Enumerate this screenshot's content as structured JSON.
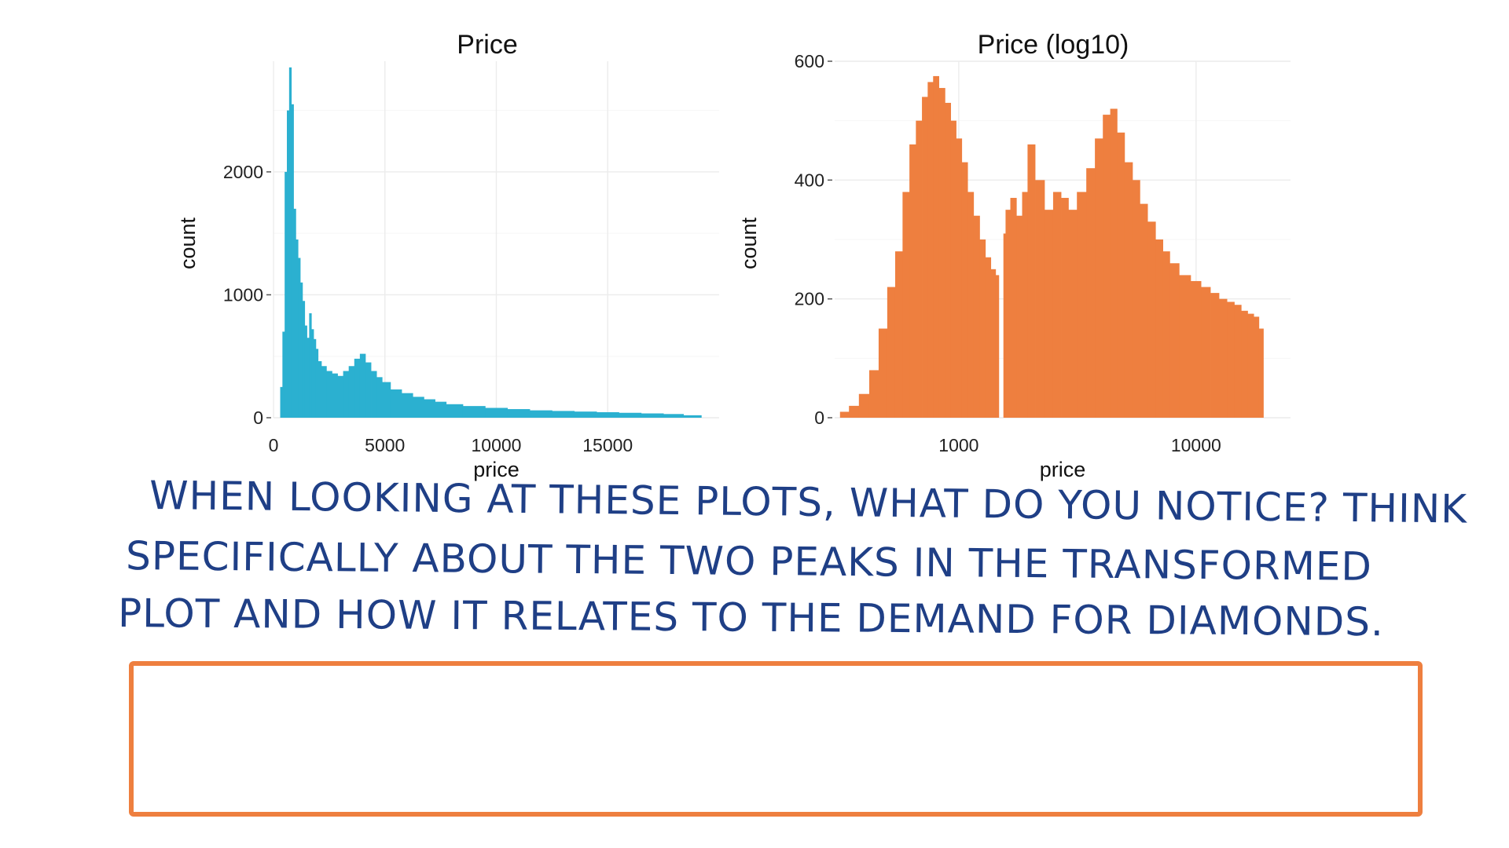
{
  "chart_data": [
    {
      "type": "bar",
      "title": "Price",
      "xlabel": "price",
      "ylabel": "count",
      "x_scale": "linear",
      "xlim": [
        0,
        20000
      ],
      "ylim": [
        0,
        2900
      ],
      "x_ticks": [
        0,
        5000,
        10000,
        15000
      ],
      "x_tick_labels": [
        "0",
        "5000",
        "10000",
        "15000"
      ],
      "y_ticks": [
        0,
        1000,
        2000
      ],
      "y_tick_labels": [
        "0",
        "1000",
        "2000"
      ],
      "grid": true,
      "color": "#2bb0d0",
      "bin_width": 100,
      "x": [
        350,
        450,
        550,
        650,
        750,
        850,
        950,
        1050,
        1150,
        1250,
        1350,
        1450,
        1550,
        1650,
        1750,
        1850,
        1950,
        2050,
        2250,
        2500,
        2750,
        3000,
        3250,
        3500,
        3750,
        4000,
        4250,
        4500,
        4750,
        5000,
        5500,
        6000,
        6500,
        7000,
        7500,
        8000,
        9000,
        10000,
        11000,
        12000,
        13000,
        14000,
        15000,
        16000,
        17000,
        18000,
        18800
      ],
      "values": [
        250,
        700,
        2000,
        2500,
        2850,
        2550,
        1700,
        1450,
        1300,
        1100,
        950,
        750,
        650,
        850,
        720,
        640,
        560,
        460,
        420,
        380,
        360,
        340,
        380,
        420,
        480,
        520,
        450,
        380,
        330,
        290,
        230,
        200,
        170,
        150,
        130,
        110,
        95,
        80,
        70,
        60,
        55,
        50,
        45,
        40,
        35,
        30,
        20
      ]
    },
    {
      "type": "bar",
      "title": "Price (log10)",
      "xlabel": "price",
      "ylabel": "count",
      "x_scale": "log10",
      "xlim": [
        300,
        25000
      ],
      "ylim": [
        0,
        600
      ],
      "x_ticks": [
        1000,
        10000
      ],
      "x_tick_labels": [
        "1000",
        "10000"
      ],
      "y_ticks": [
        0,
        200,
        400,
        600
      ],
      "y_tick_labels": [
        "0",
        "200",
        "400",
        "600"
      ],
      "grid": true,
      "color": "#ee7f3f",
      "gap_between": [
        1460,
        1550
      ],
      "x": [
        330,
        360,
        400,
        440,
        480,
        520,
        560,
        600,
        640,
        680,
        720,
        760,
        800,
        850,
        900,
        950,
        1000,
        1060,
        1120,
        1190,
        1260,
        1330,
        1400,
        1460,
        1550,
        1600,
        1700,
        1800,
        1900,
        2000,
        2200,
        2400,
        2600,
        2800,
        3000,
        3300,
        3600,
        3900,
        4200,
        4500,
        4800,
        5200,
        5600,
        6000,
        6500,
        7000,
        7500,
        8000,
        9000,
        10000,
        11000,
        12000,
        13000,
        14000,
        15000,
        16000,
        17000,
        18000,
        18800
      ],
      "values": [
        10,
        20,
        40,
        80,
        150,
        220,
        280,
        380,
        460,
        500,
        540,
        565,
        575,
        555,
        530,
        500,
        470,
        430,
        380,
        340,
        300,
        270,
        250,
        240,
        310,
        350,
        370,
        340,
        380,
        460,
        400,
        350,
        380,
        370,
        350,
        380,
        420,
        470,
        510,
        520,
        480,
        430,
        400,
        360,
        330,
        300,
        280,
        260,
        240,
        230,
        220,
        210,
        200,
        195,
        190,
        180,
        175,
        170,
        150
      ]
    }
  ],
  "prompt": {
    "lines": [
      "WHEN LOOKING AT THESE PLOTS, WHAT DO YOU NOTICE? THINK",
      "SPECIFICALLY ABOUT THE TWO PEAKS IN THE TRANSFORMED",
      "PLOT AND HOW IT RELATES TO THE DEMAND FOR DIAMONDS."
    ]
  },
  "answer_box": {
    "border_color": "#ee7f3f",
    "value": ""
  }
}
